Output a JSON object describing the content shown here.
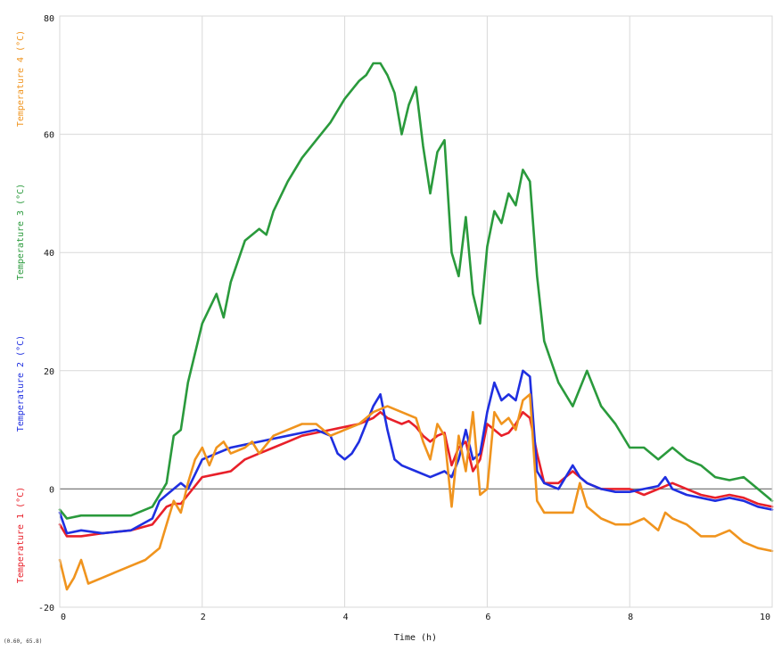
{
  "chart_data": {
    "type": "line",
    "xlabel": "Time (h)",
    "xlim": [
      0,
      10
    ],
    "ylim": [
      -20,
      80
    ],
    "x_ticks": [
      "0",
      "2",
      "4",
      "6",
      "8",
      "10"
    ],
    "y_ticks": [
      "-20",
      "0",
      "20",
      "40",
      "60",
      "80"
    ],
    "grid": true,
    "cursor_readout": "(0.60, 65.8)",
    "series": [
      {
        "name": "Temperature 1 (°C)",
        "axis_label": "Temperature 1 (°C)",
        "color": "#e8202a",
        "x": [
          0,
          0.1,
          0.3,
          0.6,
          1.0,
          1.3,
          1.5,
          1.6,
          1.7,
          1.8,
          2.0,
          2.2,
          2.4,
          2.6,
          2.8,
          3.0,
          3.2,
          3.4,
          3.6,
          3.8,
          4.0,
          4.2,
          4.4,
          4.5,
          4.6,
          4.7,
          4.8,
          4.9,
          5.0,
          5.1,
          5.2,
          5.3,
          5.4,
          5.5,
          5.6,
          5.7,
          5.8,
          5.9,
          6.0,
          6.1,
          6.2,
          6.3,
          6.4,
          6.5,
          6.6,
          6.7,
          6.8,
          7.0,
          7.2,
          7.4,
          7.6,
          7.8,
          8.0,
          8.2,
          8.4,
          8.6,
          8.8,
          9.0,
          9.2,
          9.4,
          9.6,
          9.8,
          10.0
        ],
        "y": [
          -6,
          -8,
          -8,
          -7.5,
          -7,
          -6,
          -3,
          -2.5,
          -2.5,
          -1,
          2,
          2.5,
          3,
          5,
          6,
          7,
          8,
          9,
          9.5,
          10,
          10.5,
          11,
          12,
          13,
          12,
          11.5,
          11,
          11.5,
          10.5,
          9,
          8,
          9,
          9.5,
          4,
          7,
          8,
          3,
          5,
          11,
          10,
          9,
          9.5,
          11,
          13,
          12,
          6,
          1,
          1,
          3,
          1,
          0,
          0,
          0,
          -1,
          0,
          1,
          0,
          -1,
          -1.5,
          -1,
          -1.5,
          -2.5,
          -3
        ]
      },
      {
        "name": "Temperature 2 (°C)",
        "axis_label": "Temperature 2 (°C)",
        "color": "#1f2fe0",
        "x": [
          0,
          0.1,
          0.3,
          0.6,
          1.0,
          1.3,
          1.4,
          1.5,
          1.6,
          1.7,
          1.8,
          2.0,
          2.2,
          2.4,
          2.6,
          2.8,
          3.0,
          3.2,
          3.4,
          3.6,
          3.8,
          3.9,
          4.0,
          4.1,
          4.2,
          4.4,
          4.5,
          4.6,
          4.7,
          4.8,
          5.0,
          5.2,
          5.4,
          5.5,
          5.6,
          5.7,
          5.8,
          5.9,
          6.0,
          6.1,
          6.2,
          6.3,
          6.4,
          6.5,
          6.6,
          6.7,
          6.8,
          7.0,
          7.2,
          7.3,
          7.4,
          7.6,
          7.8,
          8.0,
          8.2,
          8.4,
          8.5,
          8.6,
          8.8,
          9.0,
          9.2,
          9.4,
          9.6,
          9.8,
          10.0
        ],
        "y": [
          -4,
          -7.5,
          -7,
          -7.5,
          -7,
          -5,
          -2,
          -1,
          0,
          1,
          0,
          5,
          6,
          7,
          7.5,
          8,
          8.5,
          9,
          9.5,
          10,
          9,
          6,
          5,
          6,
          8,
          14,
          16,
          10,
          5,
          4,
          3,
          2,
          3,
          2,
          5,
          10,
          5,
          6,
          13,
          18,
          15,
          16,
          15,
          20,
          19,
          3,
          1,
          0,
          4,
          2,
          1,
          0,
          -0.5,
          -0.5,
          0,
          0.5,
          2,
          0,
          -1,
          -1.5,
          -2,
          -1.5,
          -2,
          -3,
          -3.5
        ]
      },
      {
        "name": "Temperature 3 (°C)",
        "axis_label": "Temperature 3 (°C)",
        "color": "#2a9a3c",
        "x": [
          0,
          0.1,
          0.3,
          0.6,
          1.0,
          1.3,
          1.5,
          1.6,
          1.7,
          1.8,
          2.0,
          2.2,
          2.3,
          2.4,
          2.6,
          2.8,
          2.9,
          3.0,
          3.2,
          3.4,
          3.6,
          3.8,
          4.0,
          4.2,
          4.3,
          4.4,
          4.5,
          4.6,
          4.7,
          4.8,
          4.9,
          5.0,
          5.1,
          5.2,
          5.3,
          5.4,
          5.5,
          5.6,
          5.7,
          5.8,
          5.9,
          6.0,
          6.1,
          6.2,
          6.3,
          6.4,
          6.5,
          6.6,
          6.7,
          6.8,
          7.0,
          7.2,
          7.4,
          7.6,
          7.8,
          8.0,
          8.2,
          8.4,
          8.6,
          8.8,
          9.0,
          9.2,
          9.4,
          9.6,
          9.8,
          10.0
        ],
        "y": [
          -3.5,
          -5,
          -4.5,
          -4.5,
          -4.5,
          -3,
          1,
          9,
          10,
          18,
          28,
          33,
          29,
          35,
          42,
          44,
          43,
          47,
          52,
          56,
          59,
          62,
          66,
          69,
          70,
          72,
          72,
          70,
          67,
          60,
          65,
          68,
          58,
          50,
          57,
          59,
          40,
          36,
          46,
          33,
          28,
          41,
          47,
          45,
          50,
          48,
          54,
          52,
          36,
          25,
          18,
          14,
          20,
          14,
          11,
          7,
          7,
          5,
          7,
          5,
          4,
          2,
          1.5,
          2,
          0,
          -2
        ]
      },
      {
        "name": "Temperature 4 (°C)",
        "axis_label": "Temperature 4 (°C)",
        "color": "#f0941e",
        "x": [
          0,
          0.1,
          0.2,
          0.3,
          0.4,
          0.6,
          0.8,
          1.0,
          1.2,
          1.4,
          1.5,
          1.6,
          1.7,
          1.8,
          1.9,
          2.0,
          2.1,
          2.2,
          2.3,
          2.4,
          2.6,
          2.7,
          2.8,
          3.0,
          3.2,
          3.4,
          3.6,
          3.8,
          4.0,
          4.2,
          4.4,
          4.6,
          4.8,
          5.0,
          5.1,
          5.2,
          5.3,
          5.4,
          5.5,
          5.6,
          5.7,
          5.8,
          5.9,
          6.0,
          6.1,
          6.2,
          6.3,
          6.4,
          6.5,
          6.6,
          6.7,
          6.8,
          7.0,
          7.2,
          7.3,
          7.4,
          7.6,
          7.8,
          8.0,
          8.2,
          8.4,
          8.5,
          8.6,
          8.8,
          9.0,
          9.2,
          9.4,
          9.6,
          9.8,
          10.0
        ],
        "y": [
          -12,
          -17,
          -15,
          -12,
          -16,
          -15,
          -14,
          -13,
          -12,
          -10,
          -6,
          -2,
          -4,
          1,
          5,
          7,
          4,
          7,
          8,
          6,
          7,
          8,
          6,
          9,
          10,
          11,
          11,
          9,
          10,
          11,
          13,
          14,
          13,
          12,
          8,
          5,
          11,
          9,
          -3,
          9,
          3,
          13,
          -1,
          0,
          13,
          11,
          12,
          10,
          15,
          16,
          -2,
          -4,
          -4,
          -4,
          1,
          -3,
          -5,
          -6,
          -6,
          -5,
          -7,
          -4,
          -5,
          -6,
          -8,
          -8,
          -7,
          -9,
          -10,
          -10.5
        ]
      }
    ]
  }
}
